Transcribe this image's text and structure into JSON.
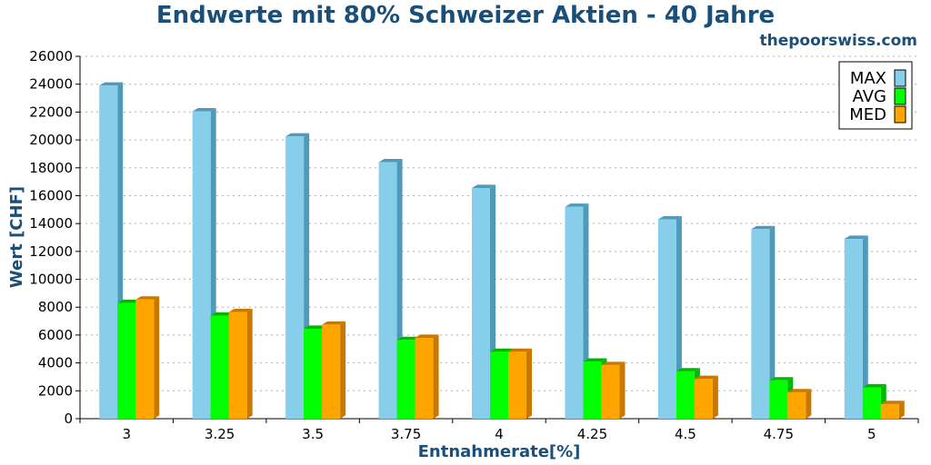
{
  "chart_data": {
    "type": "bar",
    "title": "Endwerte mit 80% Schweizer Aktien - 40 Jahre",
    "source": "thepoorswiss.com",
    "xlabel": "Entnahmerate[%]",
    "ylabel": "Wert [CHF]",
    "ylim": [
      0,
      26000
    ],
    "yticks": [
      0,
      2000,
      4000,
      6000,
      8000,
      10000,
      12000,
      14000,
      16000,
      18000,
      20000,
      22000,
      24000,
      26000
    ],
    "categories": [
      "3",
      "3.25",
      "3.5",
      "3.75",
      "4",
      "4.25",
      "4.5",
      "4.75",
      "5"
    ],
    "grid": true,
    "legend_position": "top-right",
    "series": [
      {
        "name": "MAX",
        "color": "#87ceeb",
        "side_color": "#4f9ab8",
        "values": [
          23900,
          22050,
          20250,
          18400,
          16550,
          15200,
          14300,
          13600,
          12900
        ]
      },
      {
        "name": "AVG",
        "color": "#00ff00",
        "side_color": "#00b800",
        "values": [
          8300,
          7400,
          6450,
          5650,
          4800,
          4100,
          3400,
          2750,
          2250
        ]
      },
      {
        "name": "MED",
        "color": "#ffa500",
        "side_color": "#c87800",
        "values": [
          8550,
          7650,
          6750,
          5800,
          4800,
          3850,
          2850,
          1900,
          1050
        ]
      }
    ]
  }
}
